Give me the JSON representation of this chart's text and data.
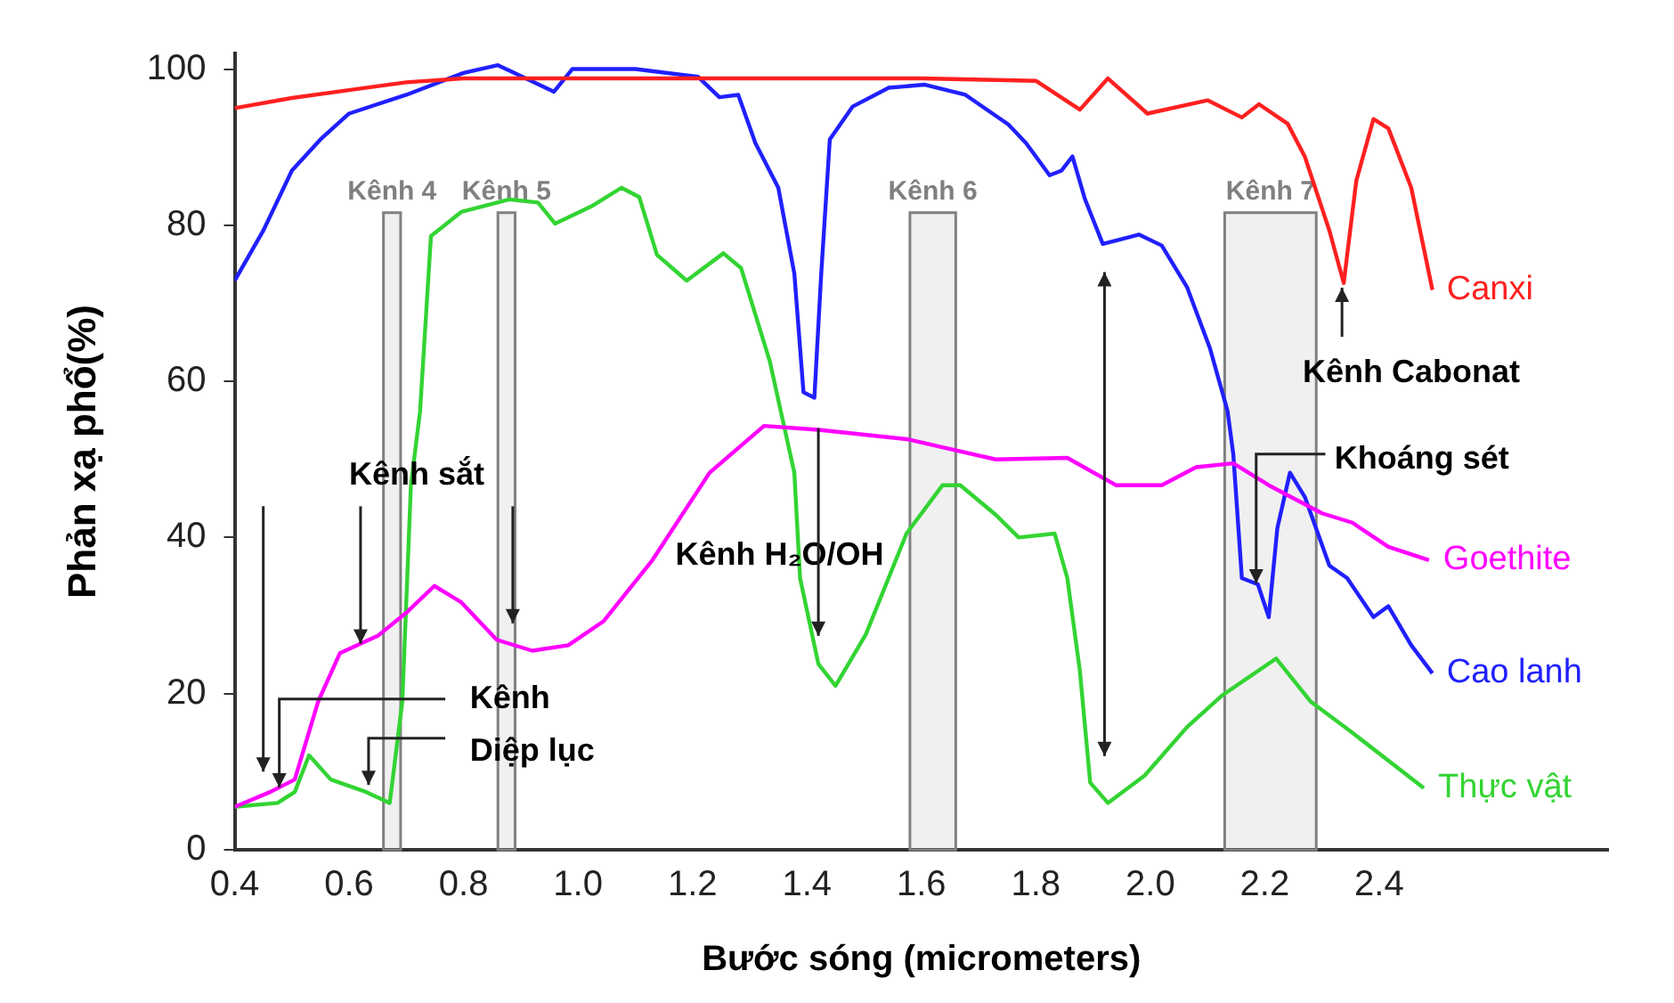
{
  "chart_data": {
    "type": "line",
    "xlabel": "Bước sóng (micrometers)",
    "ylabel": "Phản xạ phổ(%)",
    "xlim": [
      0.4,
      2.8
    ],
    "xticks": [
      {
        "value": 0.4,
        "label": "0.4"
      },
      {
        "value": 0.6,
        "label": "0.6"
      },
      {
        "value": 0.8,
        "label": "0.8"
      },
      {
        "value": 1.0,
        "label": "1.0"
      },
      {
        "value": 1.2,
        "label": "1.2"
      },
      {
        "value": 1.4,
        "label": "1.4"
      },
      {
        "value": 1.6,
        "label": "1.6"
      },
      {
        "value": 1.8,
        "label": "1.8"
      },
      {
        "value": 2.0,
        "label": "2.0"
      },
      {
        "value": 2.2,
        "label": "2.2"
      },
      {
        "value": 2.4,
        "label": "2.4"
      }
    ],
    "ylim": [
      0,
      102
    ],
    "yticks": [
      0,
      20,
      40,
      60,
      80,
      100
    ],
    "grid": false,
    "legend": false,
    "marker": "none",
    "line_style": "solid",
    "series": [
      {
        "name": "Canxi",
        "color": "#ff2020",
        "x": [
          0.4,
          0.5,
          0.6,
          0.7,
          0.8,
          1.0,
          1.2,
          1.4,
          1.6,
          1.8,
          1.877,
          1.926,
          1.995,
          2.1,
          2.16,
          2.19,
          2.24,
          2.27,
          2.313,
          2.338,
          2.36,
          2.39,
          2.416,
          2.456,
          2.493
        ],
        "values": [
          95,
          96.3,
          97.3,
          98.3,
          98.8,
          98.8,
          98.8,
          98.8,
          98.8,
          98.5,
          94.8,
          98.8,
          94.3,
          96,
          93.8,
          95.5,
          93,
          88.8,
          79.3,
          72.6,
          85.7,
          93.6,
          92.4,
          84.8,
          71.7
        ]
      },
      {
        "name": "Goethite",
        "color": "#ff00ff",
        "x": [
          0.4,
          0.462,
          0.505,
          0.546,
          0.584,
          0.65,
          0.702,
          0.749,
          0.796,
          0.858,
          0.92,
          0.983,
          1.045,
          1.13,
          1.23,
          1.325,
          1.42,
          1.574,
          1.73,
          1.855,
          1.94,
          2.02,
          2.08,
          2.145,
          2.207,
          2.3,
          2.353,
          2.416,
          2.487
        ],
        "values": [
          5.5,
          7.4,
          9,
          19,
          25.2,
          27.4,
          30.5,
          33.8,
          31.7,
          26.9,
          25.5,
          26.2,
          29.3,
          37.1,
          48.3,
          54.3,
          53.8,
          52.6,
          50,
          50.2,
          46.7,
          46.7,
          49,
          49.5,
          46.7,
          43.1,
          41.9,
          38.8,
          37.1
        ]
      },
      {
        "name": "Cao lanh",
        "color": "#2020ff",
        "x": [
          0.4,
          0.45,
          0.5,
          0.55,
          0.6,
          0.7,
          0.8,
          0.86,
          0.88,
          0.958,
          0.99,
          1.1,
          1.21,
          1.247,
          1.28,
          1.31,
          1.35,
          1.378,
          1.394,
          1.413,
          1.425,
          1.44,
          1.48,
          1.543,
          1.606,
          1.677,
          1.752,
          1.783,
          1.824,
          1.845,
          1.864,
          1.886,
          1.917,
          1.98,
          2.02,
          2.064,
          2.104,
          2.135,
          2.145,
          2.16,
          2.188,
          2.207,
          2.222,
          2.244,
          2.27,
          2.313,
          2.344,
          2.39,
          2.416,
          2.456,
          2.493
        ],
        "values": [
          72.9,
          79.3,
          87,
          91,
          94.3,
          96.7,
          99.5,
          100.5,
          99.8,
          97.1,
          100,
          100,
          99,
          96.4,
          96.7,
          90.5,
          84.8,
          73.8,
          58.6,
          57.9,
          73.8,
          91,
          95.2,
          97.6,
          98,
          96.7,
          92.9,
          90.5,
          86.4,
          87,
          88.8,
          83.3,
          77.6,
          78.8,
          77.4,
          72.1,
          64.3,
          56.2,
          50.7,
          34.8,
          34,
          29.8,
          41.2,
          48.3,
          45.2,
          36.4,
          34.8,
          29.8,
          31.2,
          26.2,
          22.6
        ]
      },
      {
        "name": "Thực vật",
        "color": "#33d433",
        "x": [
          0.4,
          0.475,
          0.505,
          0.53,
          0.568,
          0.63,
          0.671,
          0.693,
          0.708,
          0.724,
          0.743,
          0.796,
          0.88,
          0.93,
          0.96,
          1.023,
          1.076,
          1.107,
          1.138,
          1.19,
          1.254,
          1.285,
          1.335,
          1.378,
          1.388,
          1.42,
          1.45,
          1.503,
          1.574,
          1.637,
          1.668,
          1.73,
          1.77,
          1.833,
          1.855,
          1.877,
          1.895,
          1.926,
          1.99,
          2.064,
          2.126,
          2.22,
          2.28,
          2.353,
          2.478
        ],
        "values": [
          5.5,
          6,
          7.4,
          12.1,
          9,
          7.4,
          6,
          19,
          46.7,
          56.2,
          78.6,
          81.7,
          83.3,
          82.9,
          80.2,
          82.4,
          84.8,
          83.6,
          76.2,
          72.9,
          76.4,
          74.5,
          62.6,
          48.3,
          34.8,
          23.8,
          21,
          27.6,
          40.5,
          46.7,
          46.7,
          42.9,
          40,
          40.5,
          34.8,
          22.9,
          8.6,
          6,
          9.5,
          15.7,
          19.8,
          24.5,
          19,
          15,
          7.9
        ]
      }
    ],
    "bands": [
      {
        "axis": "x",
        "from": 0.66,
        "to": 0.69,
        "label": "Kênh 4",
        "color": "#808080"
      },
      {
        "axis": "x",
        "from": 0.86,
        "to": 0.89,
        "label": "Kênh 5",
        "color": "#808080"
      },
      {
        "axis": "x",
        "from": 1.58,
        "to": 1.66,
        "label": "Kênh 6",
        "color": "#808080"
      },
      {
        "axis": "x",
        "from": 2.13,
        "to": 2.29,
        "label": "Kênh 7",
        "color": "#808080"
      }
    ],
    "annotations": [
      {
        "text": "Kênh sắt",
        "x": 0.62,
        "y": 26.4
      },
      {
        "text": "Kênh",
        "x": 0.478,
        "y": 8
      },
      {
        "text": "Diệp lục",
        "x": 0.634,
        "y": 8.3
      },
      {
        "text": "Kênh H₂O/OH",
        "x": 1.42,
        "y": 27.4
      },
      {
        "text": "Kênh Cabonat",
        "x": 2.335,
        "y": 72
      },
      {
        "text": "Khoáng sét",
        "x": 2.185,
        "y": 34.1
      }
    ]
  }
}
